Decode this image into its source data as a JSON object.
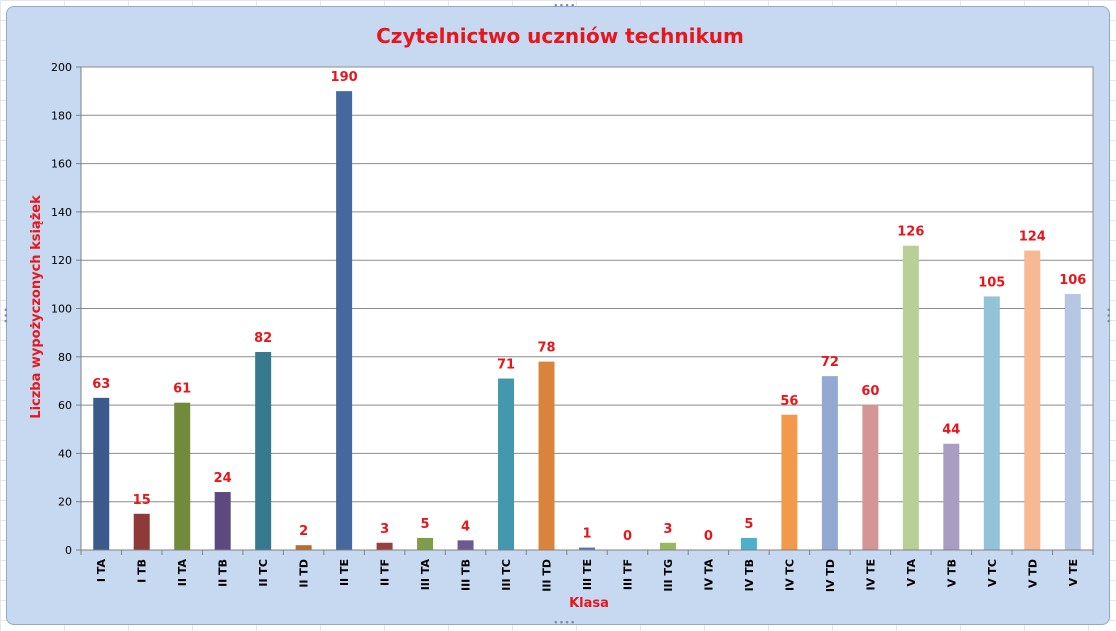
{
  "chart_data": {
    "type": "bar",
    "title": "Czytelnictwo uczniów technikum",
    "xlabel": "Klasa",
    "ylabel": "Liczba wypożyczonych książek",
    "ylim": [
      0,
      200
    ],
    "yticks": [
      0,
      20,
      40,
      60,
      80,
      100,
      120,
      140,
      160,
      180,
      200
    ],
    "grid": true,
    "legend": "none",
    "categories": [
      "I TA",
      "I TB",
      "II TA",
      "II TB",
      "II TC",
      "II TD",
      "II TE",
      "II TF",
      "III TA",
      "III TB",
      "III TC",
      "III TD",
      "III TE",
      "III TF",
      "III TG",
      "IV TA",
      "IV TB",
      "IV TC",
      "IV TD",
      "IV TE",
      "V TA",
      "V TB",
      "V TC",
      "V TD",
      "V TE"
    ],
    "values": [
      63,
      15,
      61,
      24,
      82,
      2,
      190,
      3,
      5,
      4,
      71,
      78,
      1,
      0,
      3,
      0,
      5,
      56,
      72,
      60,
      126,
      44,
      105,
      124,
      106
    ],
    "colors": [
      "#3a5a8c",
      "#8e3a38",
      "#718a3c",
      "#5c4a7e",
      "#377a8f",
      "#b56e30",
      "#46699d",
      "#9c3f3c",
      "#7e9d48",
      "#6d5992",
      "#4398b0",
      "#d9843a",
      "#5576ad",
      "#b04a47",
      "#9ab861",
      "#7e6ba4",
      "#4db0c8",
      "#f29a4a",
      "#93a9d1",
      "#d39695",
      "#b8cf95",
      "#a99dc2",
      "#92c3d7",
      "#f7b894",
      "#b5c7e3"
    ],
    "label_color": "#e8151b",
    "title_color": "#e8151b"
  }
}
